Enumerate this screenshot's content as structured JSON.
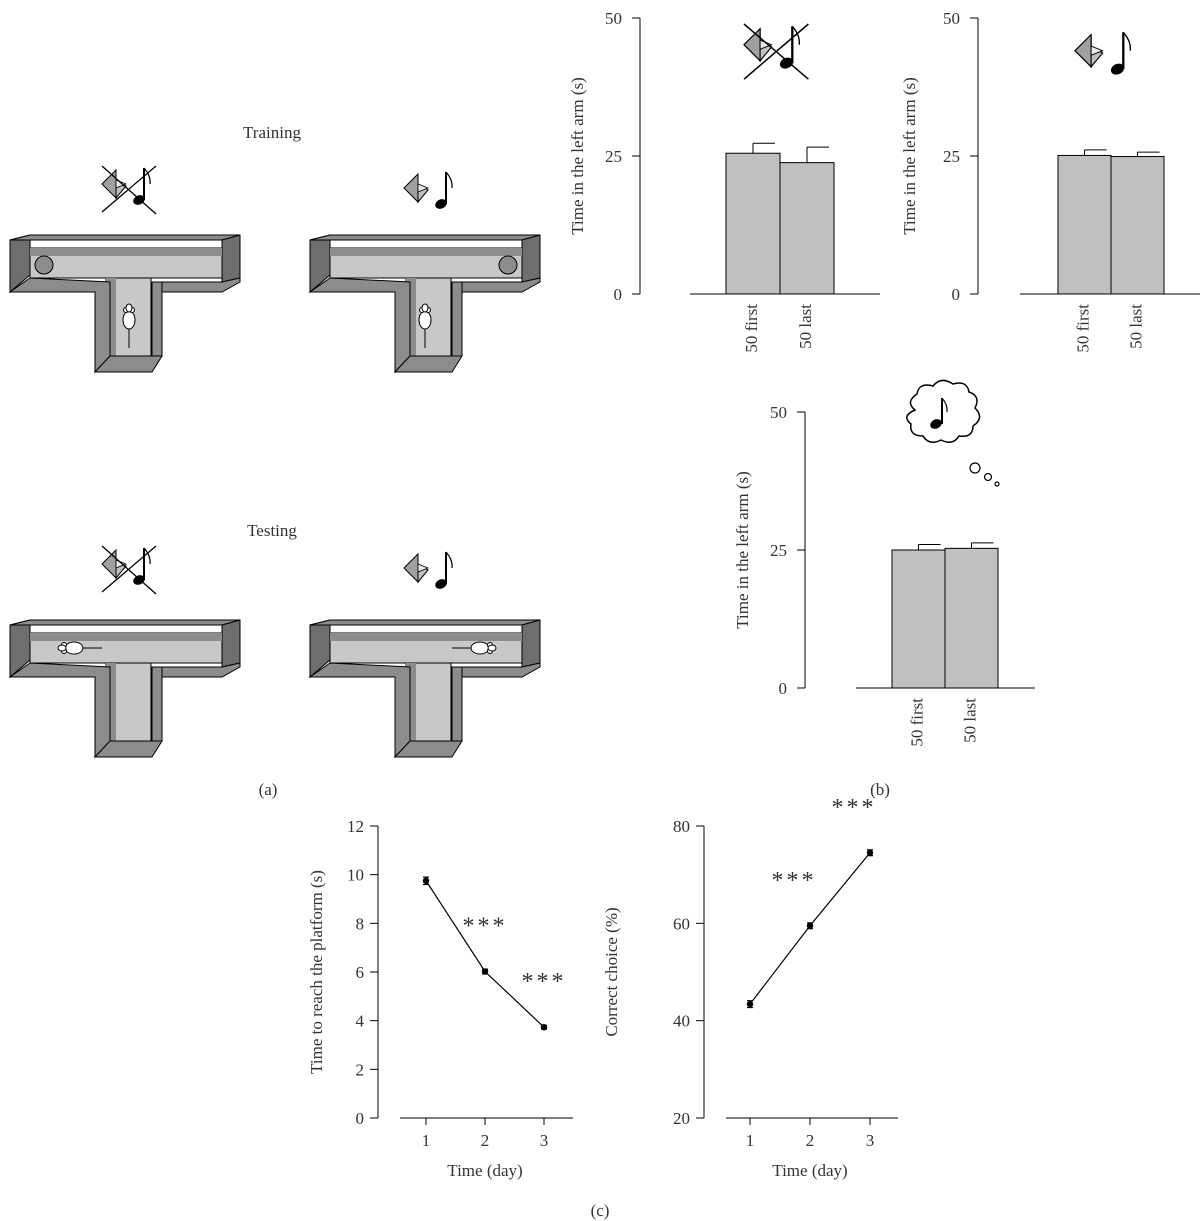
{
  "panel_a": {
    "training_label": "Training",
    "testing_label": "Testing",
    "panel_label": "(a)"
  },
  "panel_b": {
    "panel_label": "(b)"
  },
  "panel_c": {
    "panel_label": "(c)"
  },
  "icons": {
    "conditions": [
      "no-light-no-sound-icon",
      "light-and-sound-icon",
      "imagined-sound-icon"
    ],
    "maze": "t-maze-icon",
    "rat": "rat-icon",
    "platform": "platform-icon"
  },
  "colors": {
    "bar_fill": "#c0c0c0",
    "maze_floor": "#c8c8c8",
    "maze_wall": "#8c8c8c",
    "maze_wall_dark": "#6e6e6e",
    "ink": "#000000"
  },
  "chart_data": [
    {
      "id": "b1",
      "type": "bar",
      "condition": "no-light-no-sound",
      "categories": [
        "50 first",
        "50 last"
      ],
      "values": [
        25.5,
        23.8
      ],
      "errors": [
        1.8,
        2.8
      ],
      "ylabel": "Time in the left arm (s)",
      "ylim": [
        0,
        50
      ],
      "yticks": [
        0,
        25,
        50
      ]
    },
    {
      "id": "b2",
      "type": "bar",
      "condition": "light-and-sound",
      "categories": [
        "50 first",
        "50 last"
      ],
      "values": [
        25.1,
        24.9
      ],
      "errors": [
        1.0,
        0.8
      ],
      "ylabel": "Time in the left arm (s)",
      "ylim": [
        0,
        50
      ],
      "yticks": [
        0,
        25,
        50
      ]
    },
    {
      "id": "b3",
      "type": "bar",
      "condition": "imagined-sound",
      "categories": [
        "50 first",
        "50 last"
      ],
      "values": [
        25.0,
        25.3
      ],
      "errors": [
        1.0,
        1.0
      ],
      "ylabel": "Time in the left arm (s)",
      "ylim": [
        0,
        50
      ],
      "yticks": [
        0,
        25,
        50
      ]
    },
    {
      "id": "c1",
      "type": "line",
      "x": [
        1,
        2,
        3
      ],
      "values": [
        9.75,
        6.02,
        3.73
      ],
      "errors": [
        0.15,
        0.1,
        0.08
      ],
      "annotations": [
        "",
        "***",
        "***"
      ],
      "xlabel": "Time (day)",
      "ylabel": "Time to reach the platform (s)",
      "ylim": [
        0,
        12
      ],
      "yticks": [
        0,
        2,
        4,
        6,
        8,
        10,
        12
      ],
      "xticks": [
        1,
        2,
        3
      ]
    },
    {
      "id": "c2",
      "type": "line",
      "x": [
        1,
        2,
        3
      ],
      "values": [
        43.4,
        59.5,
        74.5
      ],
      "errors": [
        0.7,
        0.6,
        0.6
      ],
      "annotations": [
        "",
        "***",
        "***"
      ],
      "xlabel": "Time (day)",
      "ylabel": "Correct choice (%)",
      "ylim": [
        20,
        80
      ],
      "yticks": [
        20,
        40,
        60,
        80
      ],
      "xticks": [
        1,
        2,
        3
      ]
    }
  ]
}
